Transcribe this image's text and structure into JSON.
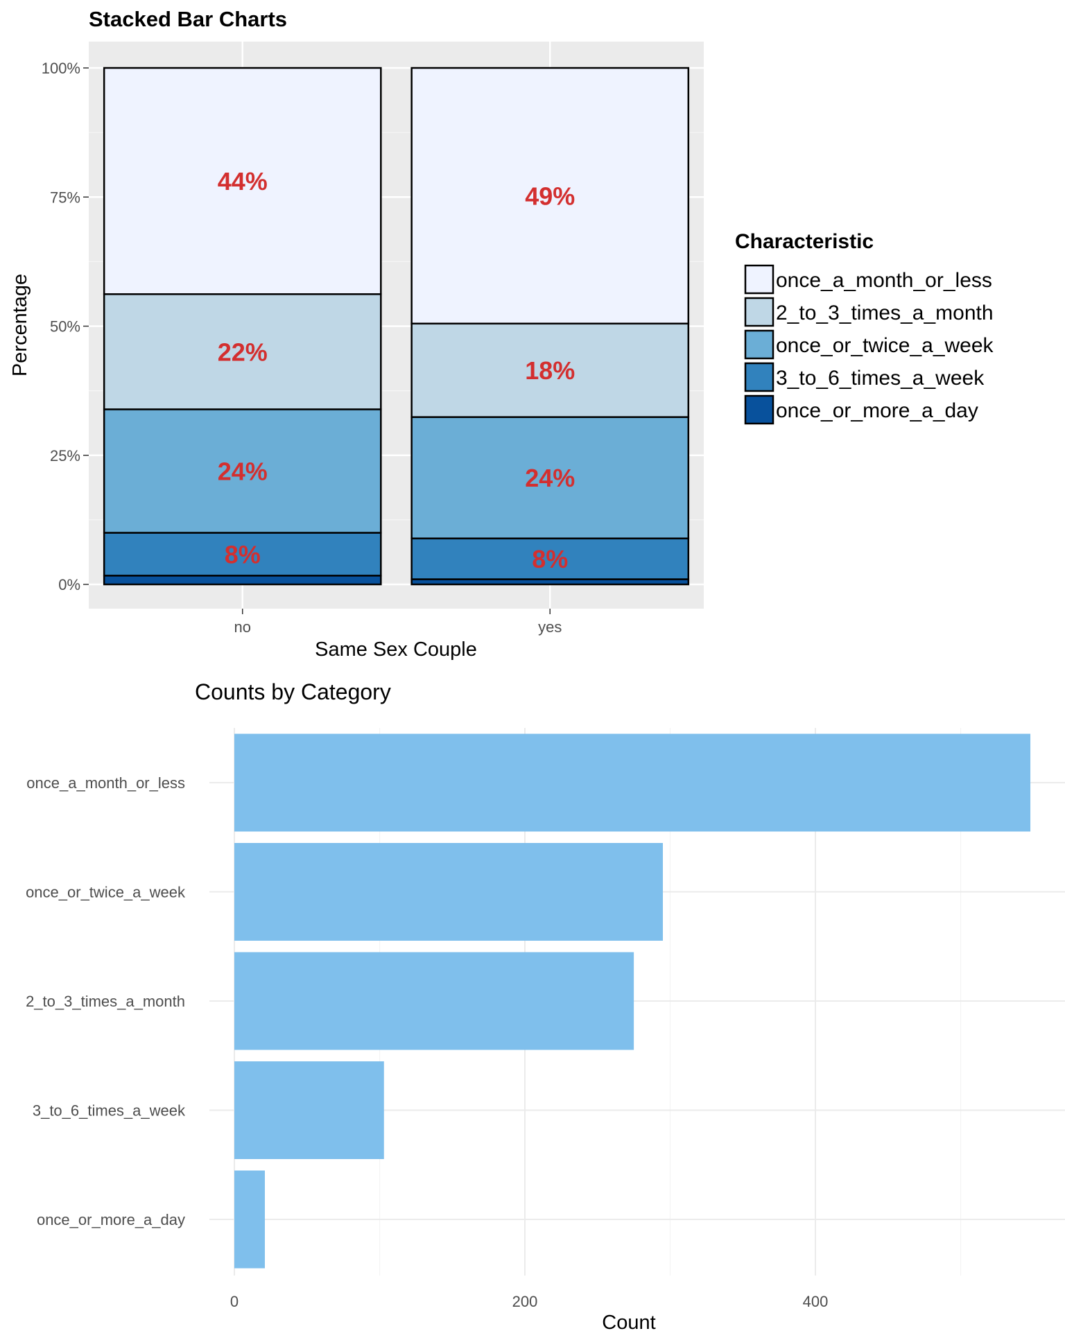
{
  "chart_data": [
    {
      "type": "bar",
      "stacked": true,
      "percent": true,
      "title": "Stacked Bar Charts",
      "xlabel": "Same Sex Couple",
      "ylabel": "Percentage",
      "categories": [
        "no",
        "yes"
      ],
      "y_ticks": [
        "0%",
        "25%",
        "50%",
        "75%",
        "100%"
      ],
      "ylim": [
        0,
        100
      ],
      "grid": true,
      "legend": {
        "title": "Characteristic",
        "position": "right",
        "entries": [
          "once_a_month_or_less",
          "2_to_3_times_a_month",
          "once_or_twice_a_week",
          "3_to_6_times_a_week",
          "once_or_more_a_day"
        ]
      },
      "series": [
        {
          "name": "once_or_more_a_day",
          "color": "#08519c",
          "values": [
            1.7,
            1.0
          ],
          "labels": [
            "",
            ""
          ]
        },
        {
          "name": "3_to_6_times_a_week",
          "color": "#3182bd",
          "values": [
            8.3,
            7.9
          ],
          "labels": [
            "8%",
            "8%"
          ]
        },
        {
          "name": "once_or_twice_a_week",
          "color": "#6baed6",
          "values": [
            23.9,
            23.5
          ],
          "labels": [
            "24%",
            "24%"
          ]
        },
        {
          "name": "2_to_3_times_a_month",
          "color": "#bfd7e6",
          "values": [
            22.3,
            18.1
          ],
          "labels": [
            "22%",
            "18%"
          ]
        },
        {
          "name": "once_a_month_or_less",
          "color": "#eff3ff",
          "values": [
            43.8,
            49.5
          ],
          "labels": [
            "44%",
            "49%"
          ]
        }
      ]
    },
    {
      "type": "bar",
      "orientation": "horizontal",
      "title": "Counts by Category",
      "xlabel": "Count",
      "ylabel": "",
      "categories": [
        "once_a_month_or_less",
        "once_or_twice_a_week",
        "2_to_3_times_a_month",
        "3_to_6_times_a_week",
        "once_or_more_a_day"
      ],
      "values": [
        548,
        295,
        275,
        103,
        21
      ],
      "x_ticks": [
        0,
        200,
        400
      ],
      "xlim": [
        0,
        560
      ],
      "bar_color": "#7fbfec",
      "grid": true
    }
  ]
}
